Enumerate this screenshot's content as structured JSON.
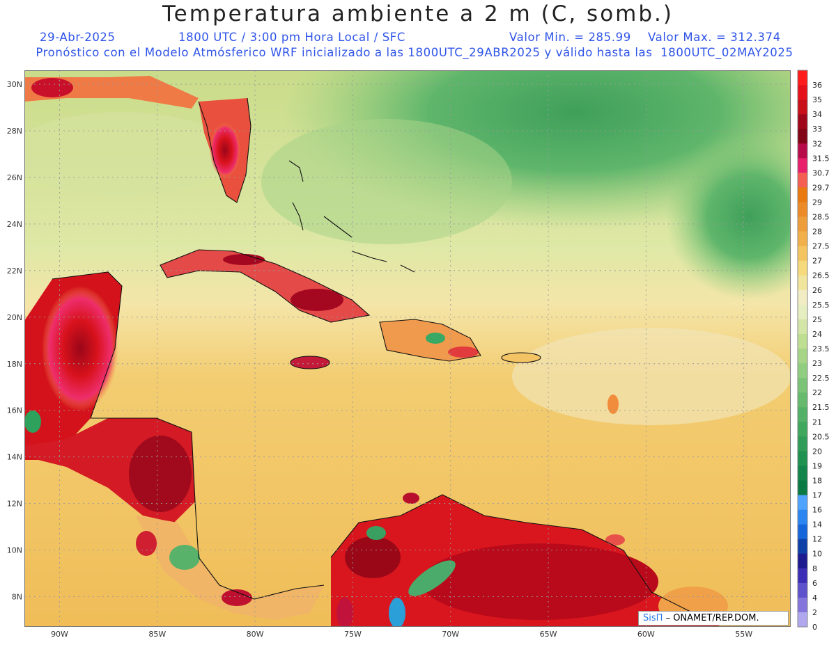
{
  "header": {
    "title": "Temperatura ambiente a 2 m (C, somb.)",
    "date": "29-Abr-2025",
    "time_info": "1800 UTC / 3:00 pm Hora Local / SFC",
    "min_label": "Valor Min. = 285.99",
    "max_label": "Valor Max. = 312.374",
    "forecast_line": "Pronóstico con el Modelo Atmósferico WRF inicializado a las 1800UTC_29ABR2025 y válido hasta las  1800UTC_02MAY2025"
  },
  "map": {
    "lat_ticks": [
      "30N",
      "28N",
      "26N",
      "24N",
      "22N",
      "20N",
      "18N",
      "16N",
      "14N",
      "12N",
      "10N",
      "8N"
    ],
    "lat_values": [
      30,
      28,
      26,
      24,
      22,
      20,
      18,
      16,
      14,
      12,
      10,
      8
    ],
    "lon_ticks": [
      "90W",
      "85W",
      "80W",
      "75W",
      "70W",
      "65W",
      "60W",
      "55W"
    ],
    "lon_values": [
      -90,
      -85,
      -80,
      -75,
      -70,
      -65,
      -60,
      -55
    ],
    "lat_range": [
      6.7,
      30.6
    ],
    "lon_range": [
      -91.8,
      -52.6
    ],
    "grid": true,
    "field_colors": {
      "ocean_north": "#5bb86a",
      "ocean_south": "#f3c059",
      "land_hot": "#c4141d"
    }
  },
  "colorbar": {
    "labels": [
      "36",
      "35",
      "34",
      "33",
      "32",
      "31.5",
      "30.7",
      "29.7",
      "29",
      "28.5",
      "28",
      "27.5",
      "27",
      "26.5",
      "26",
      "25.5",
      "25",
      "24",
      "23.5",
      "23",
      "22.5",
      "22",
      "21.5",
      "21",
      "20.5",
      "20",
      "19",
      "18",
      "17",
      "16",
      "14",
      "12",
      "10",
      "8",
      "6",
      "4",
      "2",
      "0"
    ],
    "colors": [
      "#ff1b1b",
      "#e6101a",
      "#c80f1a",
      "#a0061a",
      "#820417",
      "#b80c4a",
      "#e8206c",
      "#f55f53",
      "#ea7a10",
      "#ec8a28",
      "#ee9d3b",
      "#f2b04a",
      "#f4c460",
      "#f6d97a",
      "#f1e49d",
      "#f2ecc4",
      "#e5eec1",
      "#d3e6a8",
      "#bede92",
      "#a6d588",
      "#90cd80",
      "#7ac377",
      "#66ba6e",
      "#52b167",
      "#40a75f",
      "#2f9d57",
      "#1f9150",
      "#12854a",
      "#0a7a45",
      "#4ea3ff",
      "#2b86f2",
      "#1566db",
      "#0d3fa8",
      "#1d1a8f",
      "#3b2db5",
      "#5e51cc",
      "#8475dd",
      "#b0a8ee"
    ]
  },
  "credit": {
    "brand": "SisΠ",
    "text": "– ONAMET/REP.DOM."
  }
}
